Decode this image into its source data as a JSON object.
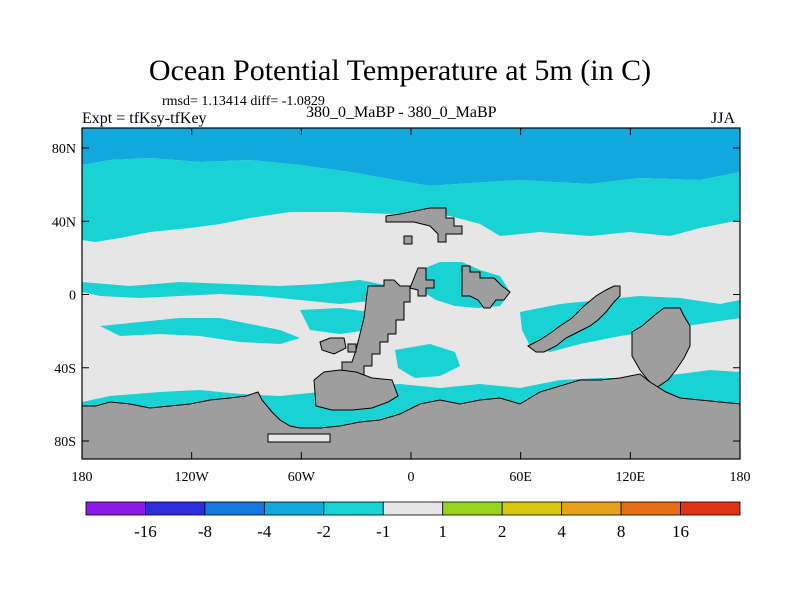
{
  "title": "Ocean Potential Temperature at 5m (in C)",
  "stats": "rmsd= 1.13414 diff= -1.0829",
  "left_label": "Expt = tfKsy-tfKey",
  "center_label": "380_0_MaBP - 380_0_MaBP",
  "right_label": "JJA",
  "x_ticks": [
    "180",
    "120W",
    "60W",
    "0",
    "60E",
    "120E",
    "180"
  ],
  "y_ticks": [
    "80N",
    "40N",
    "0",
    "40S",
    "80S"
  ],
  "colorbar": {
    "labels": [
      "-16",
      "-8",
      "-4",
      "-2",
      "-1",
      "1",
      "2",
      "4",
      "8",
      "16"
    ],
    "colors": [
      "#8b1ae6",
      "#2d2fdd",
      "#1577df",
      "#11a9dd",
      "#19d2d3",
      "#e6e6e6",
      "#97d51c",
      "#d7c80d",
      "#e7a11a",
      "#e56d13",
      "#df3416"
    ]
  },
  "map_colors": {
    "background": "#e6e6e6",
    "land": "#9e9e9e",
    "band_cyan": "#19d2d3",
    "band_blue": "#11a9dd"
  }
}
